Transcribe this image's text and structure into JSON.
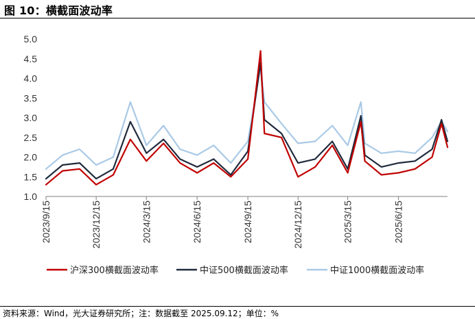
{
  "header": {
    "title": "图 10：横截面波动率"
  },
  "footer": {
    "source": "资料来源：Wind，光大证券研究所；注：数据截至 2025.09.12；单位：%"
  },
  "chart_data": {
    "type": "line",
    "title": "图 10：横截面波动率",
    "ylim": [
      1.0,
      5.0
    ],
    "yticks": [
      "1.0",
      "1.5",
      "2.0",
      "2.5",
      "3.0",
      "3.5",
      "4.0",
      "4.5",
      "5.0"
    ],
    "xticks": [
      "2023/9/15",
      "2023/12/15",
      "2024/3/15",
      "2024/6/15",
      "2024/9/15",
      "2024/12/15",
      "2025/3/15",
      "2025/6/15"
    ],
    "x": [
      "2023/9/15",
      "2023/10/15",
      "2023/11/15",
      "2023/12/15",
      "2024/1/15",
      "2024/2/15",
      "2024/3/15",
      "2024/4/15",
      "2024/5/15",
      "2024/6/15",
      "2024/7/15",
      "2024/8/15",
      "2024/9/15",
      "2024/10/8",
      "2024/10/15",
      "2024/11/15",
      "2024/12/15",
      "2025/1/15",
      "2025/2/15",
      "2025/3/15",
      "2025/4/8",
      "2025/4/15",
      "2025/5/15",
      "2025/6/15",
      "2025/7/15",
      "2025/8/15",
      "2025/9/1",
      "2025/9/12"
    ],
    "series": [
      {
        "name": "沪深300横截面波动率",
        "color": "#c00000",
        "values": [
          1.3,
          1.65,
          1.7,
          1.3,
          1.55,
          2.45,
          1.9,
          2.35,
          1.85,
          1.6,
          1.85,
          1.5,
          1.95,
          4.7,
          2.6,
          2.5,
          1.5,
          1.75,
          2.3,
          1.6,
          2.9,
          1.9,
          1.55,
          1.6,
          1.7,
          2.0,
          2.85,
          2.25
        ]
      },
      {
        "name": "中证500横截面波动率",
        "color": "#1f2a3c",
        "values": [
          1.45,
          1.8,
          1.85,
          1.45,
          1.7,
          2.9,
          2.1,
          2.45,
          1.95,
          1.75,
          1.95,
          1.55,
          2.15,
          4.4,
          2.95,
          2.6,
          1.85,
          1.95,
          2.4,
          1.7,
          3.05,
          2.05,
          1.75,
          1.85,
          1.9,
          2.2,
          2.95,
          2.4
        ]
      },
      {
        "name": "中证1000横截面波动率",
        "color": "#a9c9e6",
        "values": [
          1.7,
          2.05,
          2.2,
          1.8,
          2.0,
          3.4,
          2.3,
          2.8,
          2.2,
          2.05,
          2.3,
          1.85,
          2.4,
          4.3,
          3.4,
          2.85,
          2.35,
          2.4,
          2.8,
          2.3,
          3.4,
          2.35,
          2.1,
          2.15,
          2.1,
          2.5,
          2.9,
          2.65
        ]
      }
    ],
    "legend": "bottom",
    "grid": false
  }
}
